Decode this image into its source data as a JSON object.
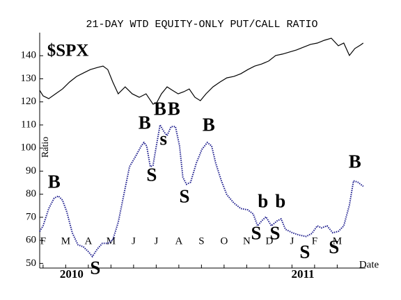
{
  "chart_data": {
    "type": "line",
    "title": "21-DAY WTD EQUITY-ONLY PUT/CALL RATIO",
    "ylabel": "Ratio",
    "xlabel": "Date",
    "inset_label": {
      "text": "$SPX",
      "x": 0.18,
      "y": 141.6
    },
    "xlim": [
      -0.15,
      14.25
    ],
    "ylim": [
      48,
      150
    ],
    "xticks": [
      {
        "value": 0,
        "label": "F"
      },
      {
        "value": 1,
        "label": "M"
      },
      {
        "value": 2,
        "label": "A"
      },
      {
        "value": 3,
        "label": "M"
      },
      {
        "value": 4,
        "label": "J"
      },
      {
        "value": 5,
        "label": "J"
      },
      {
        "value": 6,
        "label": "A"
      },
      {
        "value": 7,
        "label": "S"
      },
      {
        "value": 8,
        "label": "O"
      },
      {
        "value": 9,
        "label": "N"
      },
      {
        "value": 10,
        "label": "D"
      },
      {
        "value": 11,
        "label": "J"
      },
      {
        "value": 12,
        "label": "F"
      },
      {
        "value": 13,
        "label": "M"
      }
    ],
    "year_labels": [
      {
        "value": 1.26,
        "label": "2010"
      },
      {
        "value": 11.48,
        "label": "2011"
      }
    ],
    "yticks": [
      50,
      60,
      70,
      80,
      90,
      100,
      110,
      120,
      130,
      140
    ],
    "series": [
      {
        "color": "#000000",
        "style": "solid",
        "x": [
          -0.15,
          0,
          0.25,
          0.55,
          0.86,
          1.17,
          1.48,
          1.78,
          2.09,
          2.4,
          2.65,
          2.86,
          3.08,
          3.32,
          3.63,
          3.94,
          4.25,
          4.55,
          4.86,
          5.02,
          5.23,
          5.48,
          5.72,
          5.97,
          6.22,
          6.46,
          6.71,
          6.95,
          7.2,
          7.51,
          7.82,
          8.12,
          8.43,
          8.74,
          9.05,
          9.35,
          9.66,
          9.97,
          10.28,
          10.58,
          10.89,
          11.2,
          11.51,
          11.82,
          12.12,
          12.43,
          12.74,
          13.05,
          13.29,
          13.54,
          13.78,
          14.03,
          14.15
        ],
        "values": [
          125.0,
          122.6,
          121.4,
          123.5,
          125.6,
          128.6,
          131.0,
          132.5,
          134.0,
          134.9,
          135.5,
          134.0,
          128.6,
          123.5,
          126.5,
          123.5,
          122.0,
          123.5,
          119.0,
          119.6,
          123.5,
          126.5,
          125.0,
          123.5,
          124.4,
          125.6,
          122.0,
          120.5,
          123.5,
          126.5,
          128.6,
          130.4,
          131.0,
          132.2,
          134.0,
          135.5,
          136.4,
          137.7,
          140.1,
          140.7,
          141.6,
          142.5,
          143.7,
          144.9,
          145.5,
          146.7,
          147.6,
          144.3,
          145.5,
          140.1,
          143.1,
          144.6,
          145.5
        ]
      },
      {
        "color": "#1a1a8c",
        "style": "dotted",
        "x": [
          -0.15,
          0,
          0.25,
          0.49,
          0.68,
          0.86,
          1.05,
          1.29,
          1.54,
          1.78,
          2.0,
          2.18,
          2.4,
          2.62,
          2.86,
          3.08,
          3.32,
          3.57,
          3.82,
          4.09,
          4.34,
          4.46,
          4.58,
          4.74,
          4.86,
          4.98,
          5.17,
          5.35,
          5.48,
          5.66,
          5.85,
          6.03,
          6.18,
          6.34,
          6.52,
          6.77,
          7.02,
          7.26,
          7.45,
          7.63,
          7.88,
          8.12,
          8.43,
          8.74,
          9.05,
          9.29,
          9.48,
          9.66,
          9.85,
          10.09,
          10.34,
          10.52,
          10.71,
          11.02,
          11.32,
          11.63,
          11.88,
          12.12,
          12.31,
          12.55,
          12.8,
          13.05,
          13.29,
          13.54,
          13.72,
          13.91,
          14.15
        ],
        "values": [
          63.9,
          66.3,
          73.8,
          78.3,
          79.2,
          77.4,
          72.3,
          63.3,
          58.1,
          57.2,
          55.1,
          53.0,
          56.3,
          58.7,
          58.7,
          60.2,
          67.8,
          79.8,
          91.9,
          96.4,
          100.9,
          102.4,
          100.9,
          91.9,
          92.5,
          99.4,
          110.0,
          106.9,
          105.4,
          109.3,
          109.3,
          100.9,
          87.3,
          84.3,
          85.2,
          93.4,
          99.4,
          102.4,
          100.9,
          93.4,
          85.8,
          79.8,
          76.2,
          73.8,
          73.2,
          71.4,
          66.3,
          68.4,
          70.2,
          66.3,
          68.4,
          69.3,
          64.8,
          63.3,
          62.3,
          61.7,
          63.0,
          66.3,
          65.4,
          66.3,
          63.3,
          63.9,
          66.3,
          75.3,
          85.8,
          85.2,
          83.4
        ]
      }
    ],
    "annotations": [
      {
        "text": "B",
        "x": 0.49,
        "y": 84.6,
        "color": "#e00000"
      },
      {
        "text": "S",
        "x": 2.31,
        "y": 47.3,
        "color": "#e00000"
      },
      {
        "text": "B",
        "x": 4.49,
        "y": 110.2,
        "color": "#e00000"
      },
      {
        "text": "S",
        "x": 4.8,
        "y": 87.6,
        "color": "#e00000"
      },
      {
        "text": "B",
        "x": 5.17,
        "y": 116.2,
        "color": "#e00000"
      },
      {
        "text": "s",
        "x": 5.32,
        "y": 103.3,
        "color": "#e00000"
      },
      {
        "text": "B",
        "x": 5.78,
        "y": 116.2,
        "color": "#e00000"
      },
      {
        "text": "S",
        "x": 6.25,
        "y": 78.3,
        "color": "#e00000"
      },
      {
        "text": "B",
        "x": 7.32,
        "y": 109.3,
        "color": "#e00000"
      },
      {
        "text": "S",
        "x": 9.42,
        "y": 62.3,
        "color": "#e00000"
      },
      {
        "text": "b",
        "x": 9.72,
        "y": 76.2,
        "color": "#e00000"
      },
      {
        "text": "S",
        "x": 10.25,
        "y": 62.3,
        "color": "#e00000"
      },
      {
        "text": "b",
        "x": 10.49,
        "y": 76.2,
        "color": "#e00000"
      },
      {
        "text": "S",
        "x": 11.57,
        "y": 54.2,
        "color": "#2080e0"
      },
      {
        "text": "S",
        "x": 12.86,
        "y": 56.3,
        "color": "#e00000"
      },
      {
        "text": "B",
        "x": 13.78,
        "y": 93.4,
        "color": "#e00000"
      }
    ]
  }
}
